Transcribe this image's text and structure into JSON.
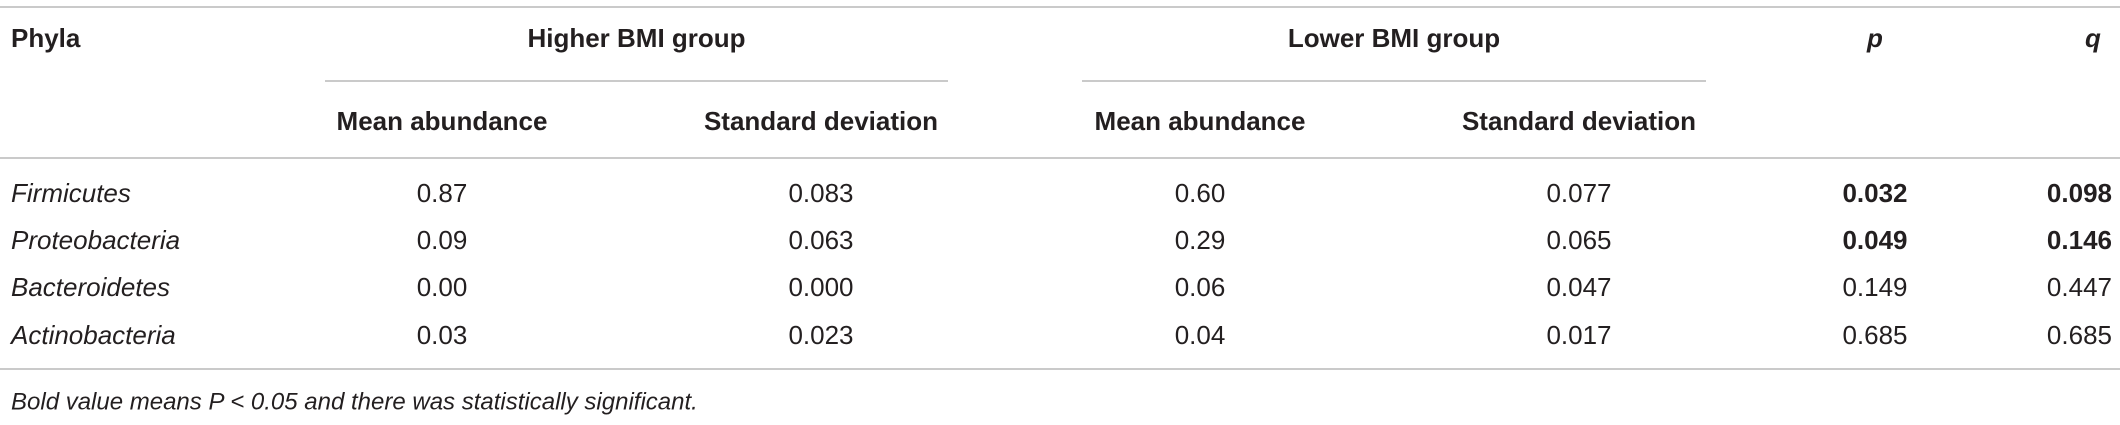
{
  "header": {
    "phyla": "Phyla",
    "groups": [
      {
        "title": "Higher BMI group",
        "columns": [
          "Mean abundance",
          "Standard deviation"
        ]
      },
      {
        "title": "Lower BMI group",
        "columns": [
          "Mean abundance",
          "Standard deviation"
        ]
      }
    ],
    "p": "p",
    "q": "q"
  },
  "rows": [
    {
      "phylum": "Firmicutes",
      "values": [
        "0.87",
        "0.083",
        "0.60",
        "0.077"
      ],
      "p": "0.032",
      "q": "0.098",
      "bold": true
    },
    {
      "phylum": "Proteobacteria",
      "values": [
        "0.09",
        "0.063",
        "0.29",
        "0.065"
      ],
      "p": "0.049",
      "q": "0.146",
      "bold": true
    },
    {
      "phylum": "Bacteroidetes",
      "values": [
        "0.00",
        "0.000",
        "0.06",
        "0.047"
      ],
      "p": "0.149",
      "q": "0.447",
      "bold": false
    },
    {
      "phylum": "Actinobacteria",
      "values": [
        "0.03",
        "0.023",
        "0.04",
        "0.017"
      ],
      "p": "0.685",
      "q": "0.685",
      "bold": false
    }
  ],
  "footnote": "Bold value means P < 0.05 and there was statistically significant."
}
